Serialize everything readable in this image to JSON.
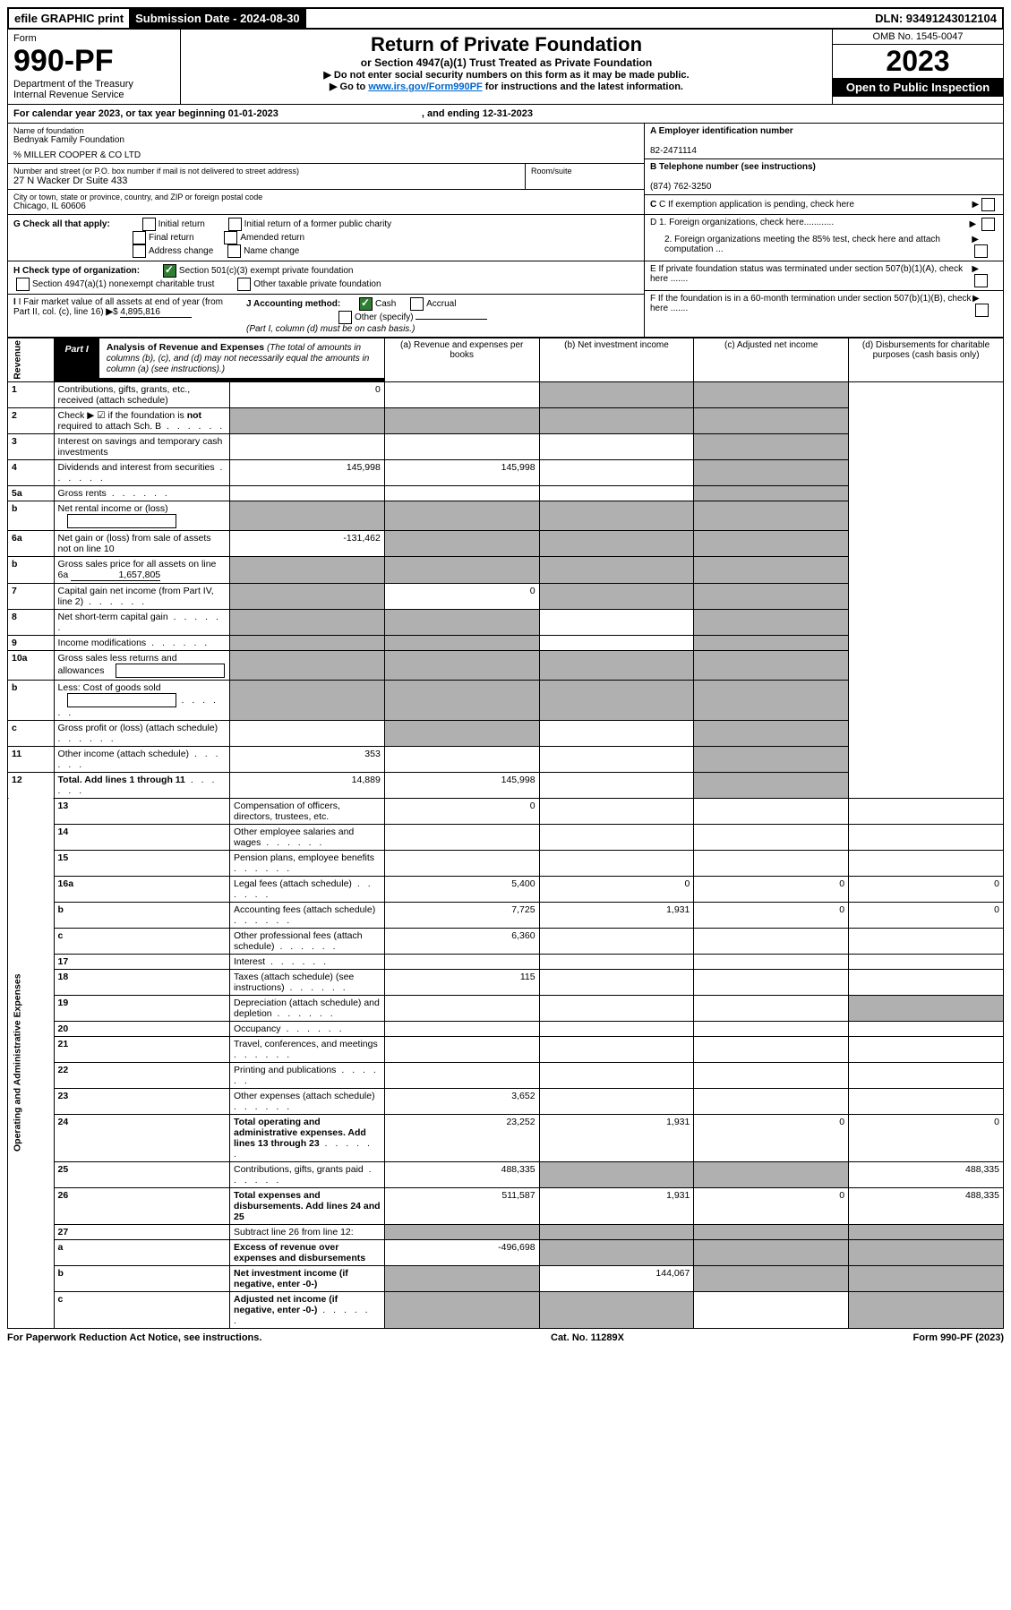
{
  "topbar": {
    "efile": "efile GRAPHIC print",
    "submission_label": "Submission Date - 2024-08-30",
    "dln": "DLN: 93491243012104"
  },
  "header": {
    "form_word": "Form",
    "form_no": "990-PF",
    "dept": "Department of the Treasury",
    "irs": "Internal Revenue Service",
    "title": "Return of Private Foundation",
    "subtitle": "or Section 4947(a)(1) Trust Treated as Private Foundation",
    "instr1": "▶ Do not enter social security numbers on this form as it may be made public.",
    "instr2_pre": "▶ Go to ",
    "instr2_link": "www.irs.gov/Form990PF",
    "instr2_post": " for instructions and the latest information.",
    "omb": "OMB No. 1545-0047",
    "year": "2023",
    "open": "Open to Public Inspection"
  },
  "cal": {
    "text": "For calendar year 2023, or tax year beginning 01-01-2023",
    "ending": ", and ending 12-31-2023"
  },
  "entity": {
    "name_label": "Name of foundation",
    "name": "Bednyak Family Foundation",
    "co": "% MILLER COOPER & CO LTD",
    "addr_label": "Number and street (or P.O. box number if mail is not delivered to street address)",
    "addr": "27 N Wacker Dr Suite 433",
    "room_label": "Room/suite",
    "city_label": "City or town, state or province, country, and ZIP or foreign postal code",
    "city": "Chicago, IL  60606",
    "ein_label": "A Employer identification number",
    "ein": "82-2471114",
    "phone_label": "B Telephone number (see instructions)",
    "phone": "(874) 762-3250",
    "c": "C If exemption application is pending, check here",
    "d1": "D 1. Foreign organizations, check here............",
    "d2": "2. Foreign organizations meeting the 85% test, check here and attach computation ...",
    "e": "E If private foundation status was terminated under section 507(b)(1)(A), check here .......",
    "f": "F If the foundation is in a 60-month termination under section 507(b)(1)(B), check here .......",
    "g_label": "G Check all that apply:",
    "g_opts": [
      "Initial return",
      "Initial return of a former public charity",
      "Final return",
      "Amended return",
      "Address change",
      "Name change"
    ],
    "h_label": "H Check type of organization:",
    "h1": "Section 501(c)(3) exempt private foundation",
    "h2": "Section 4947(a)(1) nonexempt charitable trust",
    "h3": "Other taxable private foundation",
    "i_label": "I Fair market value of all assets at end of year (from Part II, col. (c), line 16)",
    "i_val": "4,895,816",
    "j_label": "J Accounting method:",
    "j_cash": "Cash",
    "j_accrual": "Accrual",
    "j_other": "Other (specify)",
    "j_note": "(Part I, column (d) must be on cash basis.)"
  },
  "part1": {
    "label": "Part I",
    "title": "Analysis of Revenue and Expenses",
    "note": "(The total of amounts in columns (b), (c), and (d) may not necessarily equal the amounts in column (a) (see instructions).)",
    "col_a": "(a) Revenue and expenses per books",
    "col_b": "(b) Net investment income",
    "col_c": "(c) Adjusted net income",
    "col_d": "(d) Disbursements for charitable purposes (cash basis only)"
  },
  "sides": {
    "revenue": "Revenue",
    "expenses": "Operating and Administrative Expenses"
  },
  "rows": [
    {
      "n": "1",
      "desc": "Contributions, gifts, grants, etc., received (attach schedule)",
      "a": "0",
      "b": "",
      "c": "s",
      "d": "s"
    },
    {
      "n": "2",
      "desc": "Check ▶ ☑ if the foundation is not required to attach Sch. B",
      "dots": true,
      "a": "s",
      "b": "s",
      "c": "s",
      "d": "s",
      "bold_not": true
    },
    {
      "n": "3",
      "desc": "Interest on savings and temporary cash investments",
      "a": "",
      "b": "",
      "c": "",
      "d": "s"
    },
    {
      "n": "4",
      "desc": "Dividends and interest from securities",
      "dots": true,
      "a": "145,998",
      "b": "145,998",
      "c": "",
      "d": "s"
    },
    {
      "n": "5a",
      "desc": "Gross rents",
      "dots": true,
      "a": "",
      "b": "",
      "c": "",
      "d": "s"
    },
    {
      "n": "b",
      "desc": "Net rental income or (loss)",
      "inline_box": true,
      "a": "s",
      "b": "s",
      "c": "s",
      "d": "s"
    },
    {
      "n": "6a",
      "desc": "Net gain or (loss) from sale of assets not on line 10",
      "a": "-131,462",
      "b": "s",
      "c": "s",
      "d": "s"
    },
    {
      "n": "b",
      "desc": "Gross sales price for all assets on line 6a",
      "inline_val": "1,657,805",
      "a": "s",
      "b": "s",
      "c": "s",
      "d": "s"
    },
    {
      "n": "7",
      "desc": "Capital gain net income (from Part IV, line 2)",
      "dots": true,
      "a": "s",
      "b": "0",
      "c": "s",
      "d": "s"
    },
    {
      "n": "8",
      "desc": "Net short-term capital gain",
      "dots": true,
      "a": "s",
      "b": "s",
      "c": "",
      "d": "s"
    },
    {
      "n": "9",
      "desc": "Income modifications",
      "dots": true,
      "a": "s",
      "b": "s",
      "c": "",
      "d": "s"
    },
    {
      "n": "10a",
      "desc": "Gross sales less returns and allowances",
      "inline_box": true,
      "a": "s",
      "b": "s",
      "c": "s",
      "d": "s"
    },
    {
      "n": "b",
      "desc": "Less: Cost of goods sold",
      "dots": true,
      "inline_box": true,
      "a": "s",
      "b": "s",
      "c": "s",
      "d": "s"
    },
    {
      "n": "c",
      "desc": "Gross profit or (loss) (attach schedule)",
      "dots": true,
      "a": "",
      "b": "s",
      "c": "",
      "d": "s"
    },
    {
      "n": "11",
      "desc": "Other income (attach schedule)",
      "dots": true,
      "a": "353",
      "b": "",
      "c": "",
      "d": "s"
    },
    {
      "n": "12",
      "desc": "Total. Add lines 1 through 11",
      "dots": true,
      "bold": true,
      "a": "14,889",
      "b": "145,998",
      "c": "",
      "d": "s"
    },
    {
      "n": "13",
      "desc": "Compensation of officers, directors, trustees, etc.",
      "a": "0",
      "b": "",
      "c": "",
      "d": ""
    },
    {
      "n": "14",
      "desc": "Other employee salaries and wages",
      "dots": true,
      "a": "",
      "b": "",
      "c": "",
      "d": ""
    },
    {
      "n": "15",
      "desc": "Pension plans, employee benefits",
      "dots": true,
      "a": "",
      "b": "",
      "c": "",
      "d": ""
    },
    {
      "n": "16a",
      "desc": "Legal fees (attach schedule)",
      "dots": true,
      "a": "5,400",
      "b": "0",
      "c": "0",
      "d": "0"
    },
    {
      "n": "b",
      "desc": "Accounting fees (attach schedule)",
      "dots": true,
      "a": "7,725",
      "b": "1,931",
      "c": "0",
      "d": "0"
    },
    {
      "n": "c",
      "desc": "Other professional fees (attach schedule)",
      "dots": true,
      "a": "6,360",
      "b": "",
      "c": "",
      "d": ""
    },
    {
      "n": "17",
      "desc": "Interest",
      "dots": true,
      "a": "",
      "b": "",
      "c": "",
      "d": ""
    },
    {
      "n": "18",
      "desc": "Taxes (attach schedule) (see instructions)",
      "dots": true,
      "a": "115",
      "b": "",
      "c": "",
      "d": ""
    },
    {
      "n": "19",
      "desc": "Depreciation (attach schedule) and depletion",
      "dots": true,
      "a": "",
      "b": "",
      "c": "",
      "d": "s"
    },
    {
      "n": "20",
      "desc": "Occupancy",
      "dots": true,
      "a": "",
      "b": "",
      "c": "",
      "d": ""
    },
    {
      "n": "21",
      "desc": "Travel, conferences, and meetings",
      "dots": true,
      "a": "",
      "b": "",
      "c": "",
      "d": ""
    },
    {
      "n": "22",
      "desc": "Printing and publications",
      "dots": true,
      "a": "",
      "b": "",
      "c": "",
      "d": ""
    },
    {
      "n": "23",
      "desc": "Other expenses (attach schedule)",
      "dots": true,
      "a": "3,652",
      "b": "",
      "c": "",
      "d": ""
    },
    {
      "n": "24",
      "desc": "Total operating and administrative expenses. Add lines 13 through 23",
      "dots": true,
      "bold": true,
      "a": "23,252",
      "b": "1,931",
      "c": "0",
      "d": "0"
    },
    {
      "n": "25",
      "desc": "Contributions, gifts, grants paid",
      "dots": true,
      "a": "488,335",
      "b": "s",
      "c": "s",
      "d": "488,335"
    },
    {
      "n": "26",
      "desc": "Total expenses and disbursements. Add lines 24 and 25",
      "bold": true,
      "a": "511,587",
      "b": "1,931",
      "c": "0",
      "d": "488,335"
    },
    {
      "n": "27",
      "desc": "Subtract line 26 from line 12:",
      "a": "s",
      "b": "s",
      "c": "s",
      "d": "s"
    },
    {
      "n": "a",
      "desc": "Excess of revenue over expenses and disbursements",
      "bold": true,
      "a": "-496,698",
      "b": "s",
      "c": "s",
      "d": "s"
    },
    {
      "n": "b",
      "desc": "Net investment income (if negative, enter -0-)",
      "bold": true,
      "a": "s",
      "b": "144,067",
      "c": "s",
      "d": "s"
    },
    {
      "n": "c",
      "desc": "Adjusted net income (if negative, enter -0-)",
      "dots": true,
      "bold": true,
      "a": "s",
      "b": "s",
      "c": "",
      "d": "s"
    }
  ],
  "footer": {
    "left": "For Paperwork Reduction Act Notice, see instructions.",
    "mid": "Cat. No. 11289X",
    "right": "Form 990-PF (2023)"
  }
}
